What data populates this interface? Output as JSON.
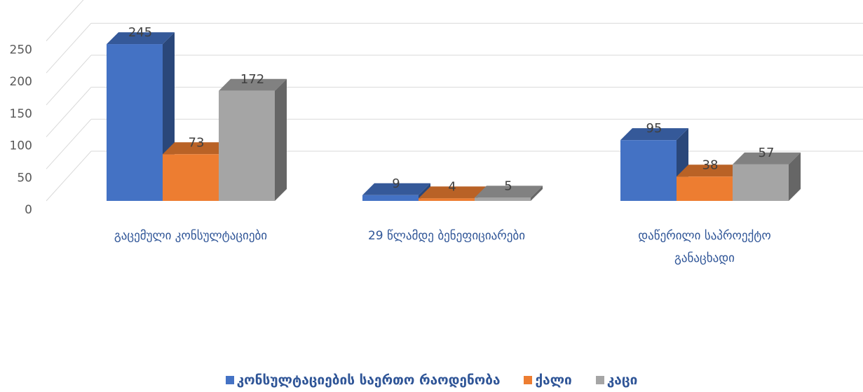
{
  "chart_data": {
    "type": "bar",
    "subtype": "3d-clustered-column",
    "categories": [
      "გაცემული კონსულტაციები",
      "29 წლამდე ბენეფიციარები",
      "დაწერილი საპროექტო განაცხადი"
    ],
    "category_lines": [
      [
        "გაცემული კონსულტაციები"
      ],
      [
        "29 წლამდე ბენეფიციარები"
      ],
      [
        "დაწერილი საპროექტო",
        "განაცხადი"
      ]
    ],
    "series": [
      {
        "name": "კონსულტაციების საერთო რაოდენობა",
        "values": [
          245,
          9,
          95
        ],
        "color": "#4472C4"
      },
      {
        "name": "ქალი",
        "values": [
          73,
          4,
          38
        ],
        "color": "#ED7D31"
      },
      {
        "name": "კაცი",
        "values": [
          172,
          5,
          57
        ],
        "color": "#A5A5A5"
      }
    ],
    "ylim": [
      0,
      250
    ],
    "yticks": [
      0,
      50,
      100,
      150,
      200,
      250
    ],
    "grid": true,
    "legend_position": "bottom",
    "data_labels": true,
    "title": "",
    "xlabel": "",
    "ylabel": ""
  }
}
